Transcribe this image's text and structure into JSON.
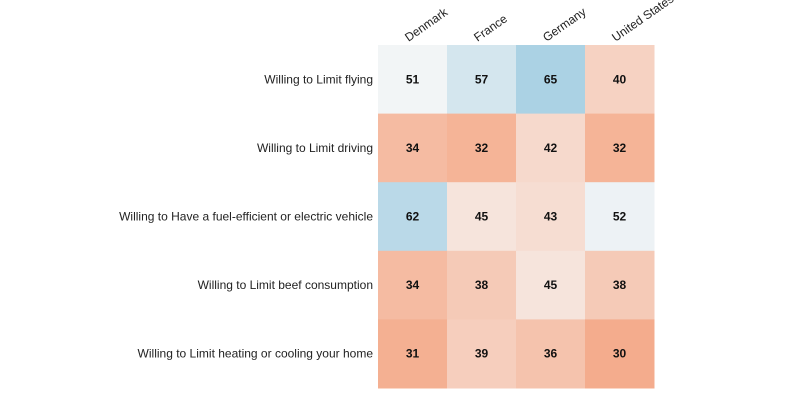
{
  "chart_data": {
    "type": "heatmap",
    "columns": [
      "Denmark",
      "France",
      "Germany",
      "United States"
    ],
    "rows": [
      "Willing to Limit flying",
      "Willing to Limit driving",
      "Willing to Have a fuel-efficient or electric vehicle",
      "Willing to Limit beef consumption",
      "Willing to Limit heating or cooling your home"
    ],
    "values": [
      [
        51,
        57,
        65,
        40
      ],
      [
        34,
        32,
        42,
        32
      ],
      [
        62,
        45,
        43,
        52
      ],
      [
        34,
        38,
        45,
        38
      ],
      [
        31,
        39,
        36,
        30
      ]
    ],
    "colormap": {
      "low": "#f4a582",
      "mid": "#f7f7f7",
      "high": "#92c5de",
      "low_value": 28,
      "mid_value": 50,
      "high_value": 70
    },
    "legend": "none"
  }
}
